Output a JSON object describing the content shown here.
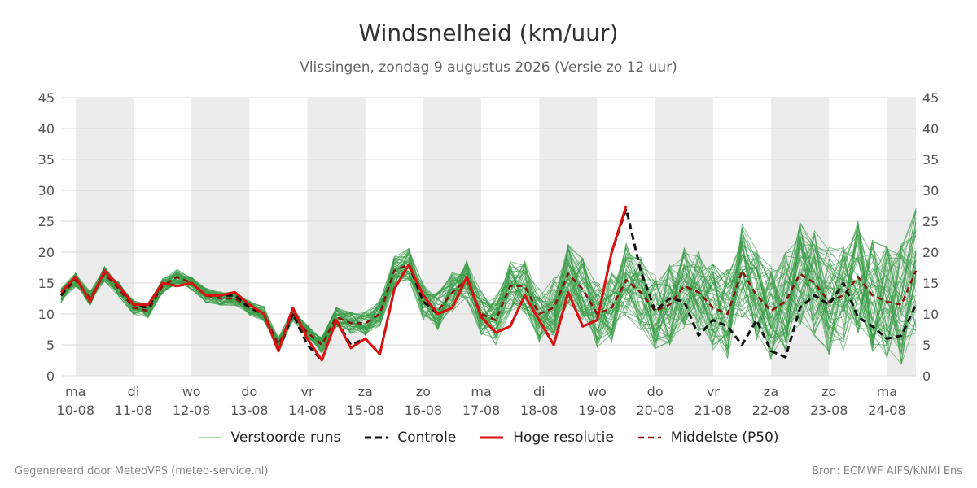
{
  "title": "Windsnelheid (km/uur)",
  "subtitle": "Vlissingen, zondag  9 augustus 2026 (Versie zo 12 uur)",
  "footer": {
    "left": "Gegenereerd door MeteoVPS (meteo-service.nl)",
    "right": "Bron: ECMWF AIFS/KNMI Ens"
  },
  "legend": [
    {
      "name": "Verstoorde runs",
      "color": "#4cab55",
      "style": "solid-thin"
    },
    {
      "name": "Controle",
      "color": "#111111",
      "style": "dashed"
    },
    {
      "name": "Hoge resolutie",
      "color": "#dd1111",
      "style": "solid-thick"
    },
    {
      "name": "Middelste (P50)",
      "color": "#8b1010",
      "style": "dashed"
    }
  ],
  "chart_data": {
    "type": "line",
    "ylim": [
      0,
      45
    ],
    "yticks": [
      0,
      5,
      10,
      15,
      20,
      25,
      30,
      35,
      40,
      45
    ],
    "xlim": [
      -0.25,
      14.5
    ],
    "grid": true,
    "legend_position": "bottom",
    "weekend_shading": true,
    "day_ticks": [
      {
        "day": "ma",
        "date": "10-08"
      },
      {
        "day": "di",
        "date": "11-08"
      },
      {
        "day": "wo",
        "date": "12-08"
      },
      {
        "day": "do",
        "date": "13-08"
      },
      {
        "day": "vr",
        "date": "14-08"
      },
      {
        "day": "za",
        "date": "15-08"
      },
      {
        "day": "zo",
        "date": "16-08"
      },
      {
        "day": "ma",
        "date": "17-08"
      },
      {
        "day": "di",
        "date": "18-08"
      },
      {
        "day": "wo",
        "date": "19-08"
      },
      {
        "day": "do",
        "date": "20-08"
      },
      {
        "day": "vr",
        "date": "21-08"
      },
      {
        "day": "za",
        "date": "22-08"
      },
      {
        "day": "zo",
        "date": "23-08"
      },
      {
        "day": "ma",
        "date": "24-08"
      }
    ],
    "shaded_days": [
      0,
      2,
      4,
      6,
      8,
      10,
      12,
      14
    ],
    "series": [
      {
        "name": "Hoge resolutie",
        "x": [
          -0.25,
          0,
          0.25,
          0.5,
          0.75,
          1,
          1.25,
          1.5,
          1.75,
          2,
          2.25,
          2.5,
          2.75,
          3,
          3.25,
          3.5,
          3.75,
          4,
          4.25,
          4.5,
          4.75,
          5,
          5.25,
          5.5,
          5.75,
          6,
          6.25,
          6.5,
          6.75,
          7,
          7.25,
          7.5,
          7.75,
          8,
          8.25,
          8.5,
          8.75,
          9,
          9.25,
          9.5
        ],
        "values": [
          13.5,
          16,
          12,
          17,
          14.5,
          11.5,
          11.5,
          15,
          14.5,
          15,
          13,
          13,
          13.5,
          11.5,
          10,
          4,
          11,
          6,
          2.5,
          9,
          4.5,
          6,
          3.5,
          14,
          18,
          13,
          10,
          11,
          16,
          9.5,
          7,
          8,
          13,
          9,
          5,
          13.5,
          8,
          9,
          20,
          27.5
        ]
      },
      {
        "name": "Controle",
        "x": [
          -0.25,
          0,
          0.25,
          0.5,
          0.75,
          1,
          1.25,
          1.5,
          1.75,
          2,
          2.25,
          2.5,
          2.75,
          3,
          3.25,
          3.5,
          3.75,
          4,
          4.25,
          4.5,
          4.75,
          5,
          5.25,
          5.5,
          5.75,
          6,
          6.25,
          6.5,
          6.75,
          7,
          7.25,
          7.5,
          7.75,
          8,
          8.25,
          8.5,
          8.75,
          9,
          9.25,
          9.5,
          9.75,
          10,
          10.25,
          10.5,
          10.75,
          11,
          11.25,
          11.5,
          11.75,
          12,
          12.25,
          12.5,
          12.75,
          13,
          13.25,
          13.5,
          13.75,
          14,
          14.25,
          14.5
        ],
        "values": [
          13,
          16,
          12,
          17,
          14.5,
          11.5,
          11,
          15,
          14.5,
          15,
          13,
          13,
          13,
          11,
          10,
          4,
          10,
          5,
          2.5,
          9,
          5,
          6,
          3.5,
          14,
          18,
          12,
          10,
          11,
          16,
          9.5,
          7,
          8,
          13,
          9,
          5,
          13.5,
          8,
          9,
          20,
          27,
          17,
          10.5,
          12.5,
          12,
          6.5,
          9,
          8,
          5,
          9,
          4,
          3,
          11,
          13,
          11.5,
          15,
          9.5,
          8,
          6,
          6.5,
          11.5
        ]
      },
      {
        "name": "Middelste (P50)",
        "x": [
          -0.25,
          0,
          0.25,
          0.5,
          0.75,
          1,
          1.25,
          1.5,
          1.75,
          2,
          2.25,
          2.5,
          2.75,
          3,
          3.25,
          3.5,
          3.75,
          4,
          4.25,
          4.5,
          4.75,
          5,
          5.25,
          5.5,
          5.75,
          6,
          6.25,
          6.5,
          6.75,
          7,
          7.25,
          7.5,
          7.75,
          8,
          8.25,
          8.5,
          8.75,
          9,
          9.25,
          9.5,
          9.75,
          10,
          10.25,
          10.5,
          10.75,
          11,
          11.25,
          11.5,
          11.75,
          12,
          12.25,
          12.5,
          12.75,
          13,
          13.25,
          13.5,
          13.75,
          14,
          14.25,
          14.5
        ],
        "values": [
          13,
          15.5,
          12.5,
          16.5,
          14,
          11,
          10.5,
          14.5,
          16,
          15,
          13,
          12.5,
          12.5,
          11,
          10,
          5,
          10,
          7,
          5,
          9.5,
          8.5,
          8.5,
          10,
          17,
          18,
          12,
          10.5,
          13.5,
          15.5,
          10,
          9,
          14.5,
          14.5,
          10,
          11,
          16.5,
          14,
          10,
          11,
          15.5,
          13.5,
          10.5,
          11.5,
          14.5,
          13.5,
          11,
          10,
          17,
          13,
          10.5,
          12,
          16.5,
          15,
          12,
          13,
          16,
          13,
          12,
          11.5,
          17
        ]
      }
    ]
  }
}
